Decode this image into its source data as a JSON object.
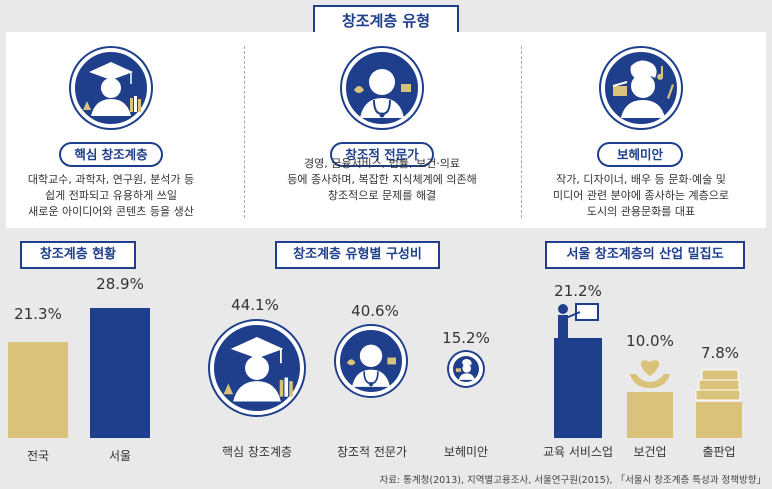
{
  "header": {
    "title": "창조계층 유형"
  },
  "types": [
    {
      "label": "핵심 창조계층",
      "description": "대학교수, 과학자, 연구원, 분석가 등\n쉽게 전파되고 유용하게 쓰일\n새로운 아이디어와 콘텐츠 등을 생산",
      "icon": "scholar-icon"
    },
    {
      "label": "창조적 전문가",
      "description": "경영, 금융서비스, 법률, 보건·의료\n등에 종사하며, 복잡한 지식체계에 의존해\n창조적으로 문제를 해결",
      "icon": "doctor-icon"
    },
    {
      "label": "보헤미안",
      "description": "작가, 디자이너, 배우 등 문화·예술 및\n미디어 관련 분야에 종사하는 계층으로\n도시의 관용문화를 대표",
      "icon": "artist-icon"
    }
  ],
  "chart_data": [
    {
      "type": "bar",
      "title": "창조계층 현황",
      "categories": [
        "전국",
        "서울"
      ],
      "values": [
        21.3,
        28.9
      ],
      "value_labels": [
        "21.3%",
        "28.9%"
      ],
      "unit": "%",
      "colors": [
        "#d9c27a",
        "#1f3f8c"
      ]
    },
    {
      "type": "bubble",
      "title": "창조계층 유형별 구성비",
      "categories": [
        "핵심 창조계층",
        "창조적 전문가",
        "보헤미안"
      ],
      "values": [
        44.1,
        40.6,
        15.2
      ],
      "value_labels": [
        "44.1%",
        "40.6%",
        "15.2%"
      ],
      "unit": "%"
    },
    {
      "type": "bar",
      "title": "서울 창조계층의 산업 밀집도",
      "categories": [
        "교육 서비스업",
        "보건업",
        "출판업"
      ],
      "values": [
        21.2,
        10.0,
        7.8
      ],
      "value_labels": [
        "21.2%",
        "10.0%",
        "7.8%"
      ],
      "unit": "%",
      "colors": [
        "#1f3f8c",
        "#d9c27a",
        "#d9c27a"
      ],
      "icons": [
        "teacher-icon",
        "heart-hands-icon",
        "books-icon"
      ]
    }
  ],
  "source": "자료: 통계청(2013), 지역별고용조사, 서울연구원(2015), 「서울시 창조계층 특성과 정책방향」"
}
